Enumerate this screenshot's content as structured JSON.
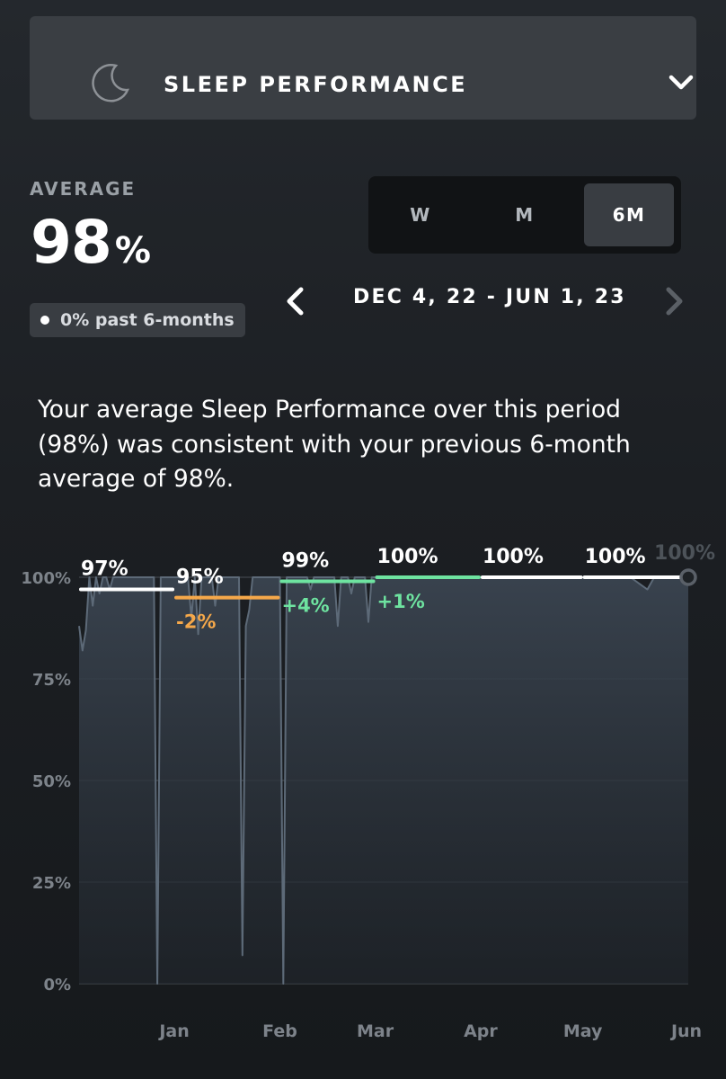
{
  "header": {
    "title": "SLEEP PERFORMANCE",
    "icon": "moon-icon",
    "chevron_icon": "chevron-down-icon"
  },
  "average": {
    "label": "AVERAGE",
    "value": "98",
    "unit": "%"
  },
  "badge": {
    "text": "0% past 6-months"
  },
  "range_selector": {
    "options": [
      "W",
      "M",
      "6M"
    ],
    "selected": "6M"
  },
  "date_range": {
    "text": "DEC 4, 22 - JUN 1, 23"
  },
  "summary": {
    "text": "Your average Sleep Performance over this period (98%) was consistent with your previous 6-month average of 98%."
  },
  "colors": {
    "white": "#ffffff",
    "orange": "#f5a84a",
    "green": "#6ee3a0",
    "line": "#5d6a78",
    "grid": "#3a3f45"
  },
  "chart_data": {
    "type": "line",
    "ylim": [
      0,
      100
    ],
    "y_ticks": [
      "100%",
      "75%",
      "50%",
      "25%",
      "0%"
    ],
    "y_tick_values": [
      100,
      75,
      50,
      25,
      0
    ],
    "x_tick_labels": [
      "Jan",
      "Feb",
      "Mar",
      "Apr",
      "May",
      "Jun"
    ],
    "x_tick_dates": [
      "2023-01-01",
      "2023-02-01",
      "2023-03-01",
      "2023-04-01",
      "2023-05-01",
      "2023-06-01"
    ],
    "x_range": [
      "2022-12-04",
      "2023-06-01"
    ],
    "series_points": [
      [
        "2022-12-04",
        88
      ],
      [
        "2022-12-05",
        82
      ],
      [
        "2022-12-06",
        87
      ],
      [
        "2022-12-07",
        100
      ],
      [
        "2022-12-08",
        93
      ],
      [
        "2022-12-09",
        100
      ],
      [
        "2022-12-10",
        96
      ],
      [
        "2022-12-11",
        100
      ],
      [
        "2022-12-12",
        100
      ],
      [
        "2022-12-13",
        97
      ],
      [
        "2022-12-14",
        100
      ],
      [
        "2022-12-15",
        100
      ],
      [
        "2022-12-16",
        100
      ],
      [
        "2022-12-17",
        100
      ],
      [
        "2022-12-18",
        100
      ],
      [
        "2022-12-19",
        100
      ],
      [
        "2022-12-20",
        100
      ],
      [
        "2022-12-21",
        100
      ],
      [
        "2022-12-22",
        100
      ],
      [
        "2022-12-23",
        100
      ],
      [
        "2022-12-24",
        100
      ],
      [
        "2022-12-25",
        100
      ],
      [
        "2022-12-26",
        100
      ],
      [
        "2022-12-27",
        0
      ],
      [
        "2022-12-28",
        100
      ],
      [
        "2022-12-29",
        100
      ],
      [
        "2022-12-30",
        100
      ],
      [
        "2022-12-31",
        100
      ],
      [
        "2023-01-01",
        100
      ],
      [
        "2023-01-02",
        100
      ],
      [
        "2023-01-03",
        100
      ],
      [
        "2023-01-04",
        100
      ],
      [
        "2023-01-05",
        100
      ],
      [
        "2023-01-06",
        90
      ],
      [
        "2023-01-07",
        100
      ],
      [
        "2023-01-08",
        86
      ],
      [
        "2023-01-09",
        100
      ],
      [
        "2023-01-10",
        100
      ],
      [
        "2023-01-11",
        100
      ],
      [
        "2023-01-12",
        100
      ],
      [
        "2023-01-13",
        93
      ],
      [
        "2023-01-14",
        100
      ],
      [
        "2023-01-15",
        100
      ],
      [
        "2023-01-16",
        100
      ],
      [
        "2023-01-17",
        100
      ],
      [
        "2023-01-18",
        100
      ],
      [
        "2023-01-19",
        100
      ],
      [
        "2023-01-20",
        100
      ],
      [
        "2023-01-21",
        7
      ],
      [
        "2023-01-22",
        88
      ],
      [
        "2023-01-23",
        92
      ],
      [
        "2023-01-24",
        100
      ],
      [
        "2023-01-25",
        100
      ],
      [
        "2023-01-26",
        100
      ],
      [
        "2023-01-27",
        100
      ],
      [
        "2023-01-28",
        100
      ],
      [
        "2023-01-29",
        100
      ],
      [
        "2023-01-30",
        100
      ],
      [
        "2023-01-31",
        100
      ],
      [
        "2023-02-01",
        100
      ],
      [
        "2023-02-02",
        0
      ],
      [
        "2023-02-03",
        100
      ],
      [
        "2023-02-04",
        100
      ],
      [
        "2023-02-05",
        100
      ],
      [
        "2023-02-06",
        100
      ],
      [
        "2023-02-07",
        100
      ],
      [
        "2023-02-08",
        100
      ],
      [
        "2023-02-09",
        100
      ],
      [
        "2023-02-10",
        97
      ],
      [
        "2023-02-11",
        100
      ],
      [
        "2023-02-12",
        100
      ],
      [
        "2023-02-13",
        100
      ],
      [
        "2023-02-14",
        100
      ],
      [
        "2023-02-15",
        100
      ],
      [
        "2023-02-16",
        100
      ],
      [
        "2023-02-17",
        100
      ],
      [
        "2023-02-18",
        88
      ],
      [
        "2023-02-19",
        100
      ],
      [
        "2023-02-20",
        100
      ],
      [
        "2023-02-21",
        100
      ],
      [
        "2023-02-22",
        96
      ],
      [
        "2023-02-23",
        100
      ],
      [
        "2023-02-24",
        100
      ],
      [
        "2023-02-25",
        100
      ],
      [
        "2023-02-26",
        100
      ],
      [
        "2023-02-27",
        89
      ],
      [
        "2023-02-28",
        100
      ],
      [
        "2023-03-01",
        100
      ],
      [
        "2023-03-10",
        100
      ],
      [
        "2023-03-20",
        100
      ],
      [
        "2023-04-01",
        100
      ],
      [
        "2023-04-15",
        100
      ],
      [
        "2023-05-01",
        100
      ],
      [
        "2023-05-15",
        100
      ],
      [
        "2023-05-20",
        97
      ],
      [
        "2023-05-22",
        100
      ],
      [
        "2023-06-01",
        100
      ]
    ],
    "monthly_averages": [
      {
        "start": "2022-12-04",
        "end": "2023-01-01",
        "value": 97,
        "label": "97%",
        "delta": "",
        "color": "white"
      },
      {
        "start": "2023-01-01",
        "end": "2023-02-01",
        "value": 95,
        "label": "95%",
        "delta": "-2%",
        "color": "orange"
      },
      {
        "start": "2023-02-01",
        "end": "2023-03-01",
        "value": 99,
        "label": "99%",
        "delta": "+4%",
        "color": "green"
      },
      {
        "start": "2023-03-01",
        "end": "2023-04-01",
        "value": 100,
        "label": "100%",
        "delta": "+1%",
        "color": "green"
      },
      {
        "start": "2023-04-01",
        "end": "2023-05-01",
        "value": 100,
        "label": "100%",
        "delta": "",
        "color": "white"
      },
      {
        "start": "2023-05-01",
        "end": "2023-06-01",
        "value": 100,
        "label": "100%",
        "delta": "",
        "color": "white"
      }
    ],
    "current_point": {
      "date": "2023-06-01",
      "value": 100,
      "label": "100%"
    }
  }
}
